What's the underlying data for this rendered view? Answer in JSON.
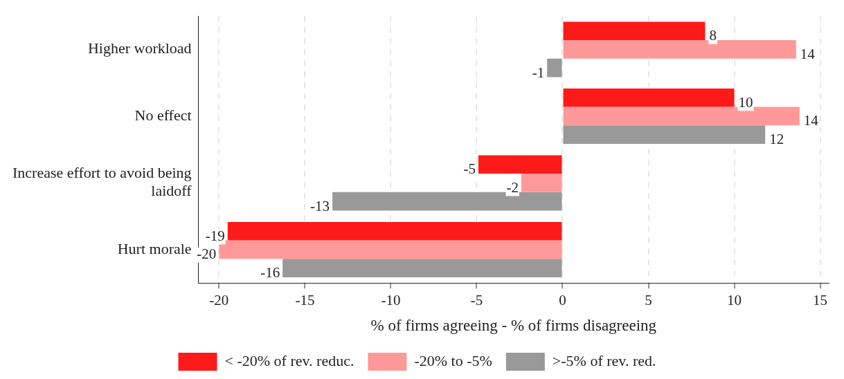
{
  "chart_data": {
    "type": "bar",
    "orientation": "horizontal",
    "xlabel": "% of firms agreeing - % of firms disagreeing",
    "categories": [
      "Higher workload",
      "No effect",
      "Increase effort to avoid being laidoff",
      "Hurt morale"
    ],
    "series": [
      {
        "name": "< -20% of rev. reduc.",
        "color": "#ff1a1a",
        "values": [
          8.3,
          10.0,
          -4.9,
          -19.5
        ],
        "value_labels": [
          "8",
          "10",
          "-5",
          "-19"
        ]
      },
      {
        "name": "-20% to -5%",
        "color": "#ff9999",
        "values": [
          13.6,
          13.8,
          -2.4,
          -20.0
        ],
        "value_labels": [
          "14",
          "14",
          "-2",
          "-20"
        ]
      },
      {
        "name": ">-5% of rev. red.",
        "color": "#999999",
        "values": [
          -0.9,
          11.8,
          -13.4,
          -16.3
        ],
        "value_labels": [
          "-1",
          "12",
          "-13",
          "-16"
        ]
      }
    ],
    "xlim": [
      -21.2,
      15.5
    ],
    "xticks": [
      -20,
      -15,
      -10,
      -5,
      0,
      5,
      10,
      15
    ],
    "grid": "x",
    "legend": "bottom"
  }
}
